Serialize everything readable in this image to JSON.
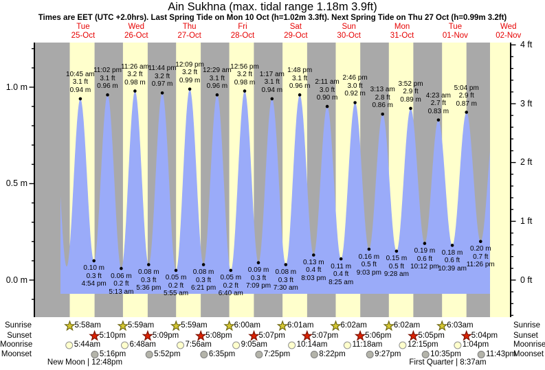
{
  "title": "Ain Sukhna (max. tidal range 1.18m 3.9ft)",
  "subtitle": "Times are EET (UTC +2.0hrs). Last Spring Tide on Mon 10 Oct (h=1.02m 3.3ft). Next Spring Tide on Thu 27 Oct (h=0.99m 3.2ft)",
  "days": [
    {
      "day": 1,
      "weekday": "Tue",
      "date": "25-Oct"
    },
    {
      "day": 2,
      "weekday": "Wed",
      "date": "26-Oct"
    },
    {
      "day": 3,
      "weekday": "Thu",
      "date": "27-Oct"
    },
    {
      "day": 4,
      "weekday": "Fri",
      "date": "28-Oct"
    },
    {
      "day": 5,
      "weekday": "Sat",
      "date": "29-Oct"
    },
    {
      "day": 6,
      "weekday": "Sun",
      "date": "30-Oct"
    },
    {
      "day": 7,
      "weekday": "Mon",
      "date": "31-Oct"
    },
    {
      "day": 8,
      "weekday": "Tue",
      "date": "01-Nov"
    },
    {
      "day": 9,
      "weekday": "Wed",
      "date": "02-Nov"
    }
  ],
  "chart_data": {
    "type": "area",
    "title": "Tide height over time",
    "ylim_m": [
      -0.19,
      1.23
    ],
    "grid": false,
    "y_axis_left": {
      "unit": "m",
      "minor_step": 0.1,
      "major": [
        {
          "value": 0.0,
          "label": "0.0 m"
        },
        {
          "value": 0.5,
          "label": "0.5 m"
        },
        {
          "value": 1.0,
          "label": "1.0 m"
        }
      ]
    },
    "y_axis_right": {
      "unit": "ft",
      "minor_step": 0.2,
      "major": [
        {
          "value": 0,
          "label": "0 ft"
        },
        {
          "value": 1,
          "label": "1 ft"
        },
        {
          "value": 2,
          "label": "2 ft"
        },
        {
          "value": 3,
          "label": "3 ft"
        },
        {
          "value": 4,
          "label": "4 ft"
        }
      ]
    },
    "high_tides": [
      {
        "day": 1,
        "time": "10:45 am",
        "ft": "3.1 ft",
        "m": "0.94 m",
        "height_m": 0.94
      },
      {
        "day": 1,
        "time": "11:02 pm",
        "ft": "3.1 ft",
        "m": "0.96 m",
        "height_m": 0.96
      },
      {
        "day": 2,
        "time": "11:26 am",
        "ft": "3.2 ft",
        "m": "0.98 m",
        "height_m": 0.98
      },
      {
        "day": 2,
        "time": "11:44 pm",
        "ft": "3.2 ft",
        "m": "0.97 m",
        "height_m": 0.97
      },
      {
        "day": 3,
        "time": "12:09 pm",
        "ft": "3.2 ft",
        "m": "0.99 m",
        "height_m": 0.99
      },
      {
        "day": 4,
        "time": "12:29 am",
        "ft": "3.1 ft",
        "m": "0.96 m",
        "height_m": 0.96
      },
      {
        "day": 4,
        "time": "12:56 pm",
        "ft": "3.2 ft",
        "m": "0.98 m",
        "height_m": 0.98
      },
      {
        "day": 5,
        "time": "1:17 am",
        "ft": "3.1 ft",
        "m": "0.94 m",
        "height_m": 0.94
      },
      {
        "day": 5,
        "time": "1:48 pm",
        "ft": "3.1 ft",
        "m": "0.96 m",
        "height_m": 0.96
      },
      {
        "day": 6,
        "time": "2:11 am",
        "ft": "3.0 ft",
        "m": "0.90 m",
        "height_m": 0.9
      },
      {
        "day": 6,
        "time": "2:46 pm",
        "ft": "3.0 ft",
        "m": "0.92 m",
        "height_m": 0.92
      },
      {
        "day": 7,
        "time": "3:13 am",
        "ft": "2.8 ft",
        "m": "0.86 m",
        "height_m": 0.86
      },
      {
        "day": 7,
        "time": "3:52 pm",
        "ft": "2.9 ft",
        "m": "0.89 m",
        "height_m": 0.89
      },
      {
        "day": 8,
        "time": "4:23 am",
        "ft": "2.7 ft",
        "m": "0.83 m",
        "height_m": 0.83
      },
      {
        "day": 8,
        "time": "5:04 pm",
        "ft": "2.9 ft",
        "m": "0.87 m",
        "height_m": 0.87
      }
    ],
    "low_tides": [
      {
        "day": 1,
        "time": "4:54 pm",
        "ft": "0.3 ft",
        "m": "0.10 m",
        "height_m": 0.1
      },
      {
        "day": 2,
        "time": "5:13 am",
        "ft": "0.2 ft",
        "m": "0.06 m",
        "height_m": 0.06
      },
      {
        "day": 2,
        "time": "5:36 pm",
        "ft": "0.3 ft",
        "m": "0.08 m",
        "height_m": 0.08
      },
      {
        "day": 3,
        "time": "5:55 am",
        "ft": "0.2 ft",
        "m": "0.05 m",
        "height_m": 0.05
      },
      {
        "day": 3,
        "time": "6:21 pm",
        "ft": "0.3 ft",
        "m": "0.08 m",
        "height_m": 0.08
      },
      {
        "day": 4,
        "time": "6:40 am",
        "ft": "0.2 ft",
        "m": "0.05 m",
        "height_m": 0.05
      },
      {
        "day": 4,
        "time": "7:09 pm",
        "ft": "0.3 ft",
        "m": "0.09 m",
        "height_m": 0.09
      },
      {
        "day": 5,
        "time": "7:30 am",
        "ft": "0.3 ft",
        "m": "0.08 m",
        "height_m": 0.08
      },
      {
        "day": 5,
        "time": "8:03 pm",
        "ft": "0.4 ft",
        "m": "0.13 m",
        "height_m": 0.13
      },
      {
        "day": 6,
        "time": "8:25 am",
        "ft": "0.4 ft",
        "m": "0.11 m",
        "height_m": 0.11
      },
      {
        "day": 6,
        "time": "9:03 pm",
        "ft": "0.5 ft",
        "m": "0.16 m",
        "height_m": 0.16
      },
      {
        "day": 7,
        "time": "9:28 am",
        "ft": "0.5 ft",
        "m": "0.15 m",
        "height_m": 0.15
      },
      {
        "day": 7,
        "time": "10:12 pm",
        "ft": "0.6 ft",
        "m": "0.19 m",
        "height_m": 0.19
      },
      {
        "day": 8,
        "time": "10:39 am",
        "ft": "0.6 ft",
        "m": "0.18 m",
        "height_m": 0.18
      },
      {
        "day": 8,
        "time": "11:26 pm",
        "ft": "0.7 ft",
        "m": "0.20 m",
        "height_m": 0.2
      }
    ],
    "curve_boundary_points": [
      {
        "day": 0,
        "time": "10:20 pm",
        "height_m": 0.95
      },
      {
        "day": 1,
        "time": "4:35 am",
        "height_m": 0.07
      },
      {
        "day": 9,
        "time": "6:10 am",
        "height_m": 0.88
      }
    ]
  },
  "astro": {
    "rows": [
      {
        "id": "sunrise",
        "label": "Sunrise",
        "icon": "sunrise-star-icon",
        "events": [
          {
            "day": 1,
            "time": "5:58am"
          },
          {
            "day": 2,
            "time": "5:59am"
          },
          {
            "day": 3,
            "time": "5:59am"
          },
          {
            "day": 4,
            "time": "6:00am"
          },
          {
            "day": 5,
            "time": "6:01am"
          },
          {
            "day": 6,
            "time": "6:02am"
          },
          {
            "day": 7,
            "time": "6:02am"
          },
          {
            "day": 8,
            "time": "6:03am"
          }
        ]
      },
      {
        "id": "sunset",
        "label": "Sunset",
        "icon": "sunset-star-icon",
        "events": [
          {
            "day": 1,
            "time": "5:10pm"
          },
          {
            "day": 2,
            "time": "5:09pm"
          },
          {
            "day": 3,
            "time": "5:08pm"
          },
          {
            "day": 4,
            "time": "5:07pm"
          },
          {
            "day": 5,
            "time": "5:07pm"
          },
          {
            "day": 6,
            "time": "5:06pm"
          },
          {
            "day": 7,
            "time": "5:05pm"
          },
          {
            "day": 8,
            "time": "5:04pm"
          }
        ]
      },
      {
        "id": "moonrise",
        "label": "Moonrise",
        "icon": "moonrise-circle-icon",
        "events": [
          {
            "day": 1,
            "time": "5:44am"
          },
          {
            "day": 2,
            "time": "6:48am"
          },
          {
            "day": 3,
            "time": "7:56am"
          },
          {
            "day": 4,
            "time": "9:05am"
          },
          {
            "day": 5,
            "time": "10:14am"
          },
          {
            "day": 6,
            "time": "11:18am"
          },
          {
            "day": 7,
            "time": "12:15pm"
          },
          {
            "day": 8,
            "time": "1:04pm"
          }
        ]
      },
      {
        "id": "moonset",
        "label": "Moonset",
        "icon": "moonset-circle-icon",
        "events": [
          {
            "day": 1,
            "time": "5:16pm"
          },
          {
            "day": 2,
            "time": "5:52pm"
          },
          {
            "day": 3,
            "time": "6:35pm"
          },
          {
            "day": 4,
            "time": "7:25pm"
          },
          {
            "day": 5,
            "time": "8:22pm"
          },
          {
            "day": 6,
            "time": "9:27pm"
          },
          {
            "day": 7,
            "time": "10:35pm"
          },
          {
            "day": 8,
            "time": "11:43pm"
          }
        ]
      }
    ],
    "phases": [
      {
        "text": "New Moon | 12:48pm",
        "day": 1,
        "time": "12:48pm"
      },
      {
        "text": "First Quarter | 8:37am",
        "day": 8,
        "time": "8:37am"
      }
    ]
  },
  "colors": {
    "night_band": "#a9a9a9",
    "day_band": "#ffffcc",
    "tide_fill": "#9aabf9",
    "date_red": "#e60000",
    "sunrise_star": "#d6c832",
    "sunrise_star_stroke": "#6e6712",
    "sunset_star": "#dd2200",
    "sunset_star_stroke": "#7a1202",
    "moonrise_circle": "#ffffcc",
    "moonrise_circle_stroke": "#909090",
    "moonset_circle": "#b4b4aa",
    "moonset_circle_stroke": "#7d7d7d"
  }
}
